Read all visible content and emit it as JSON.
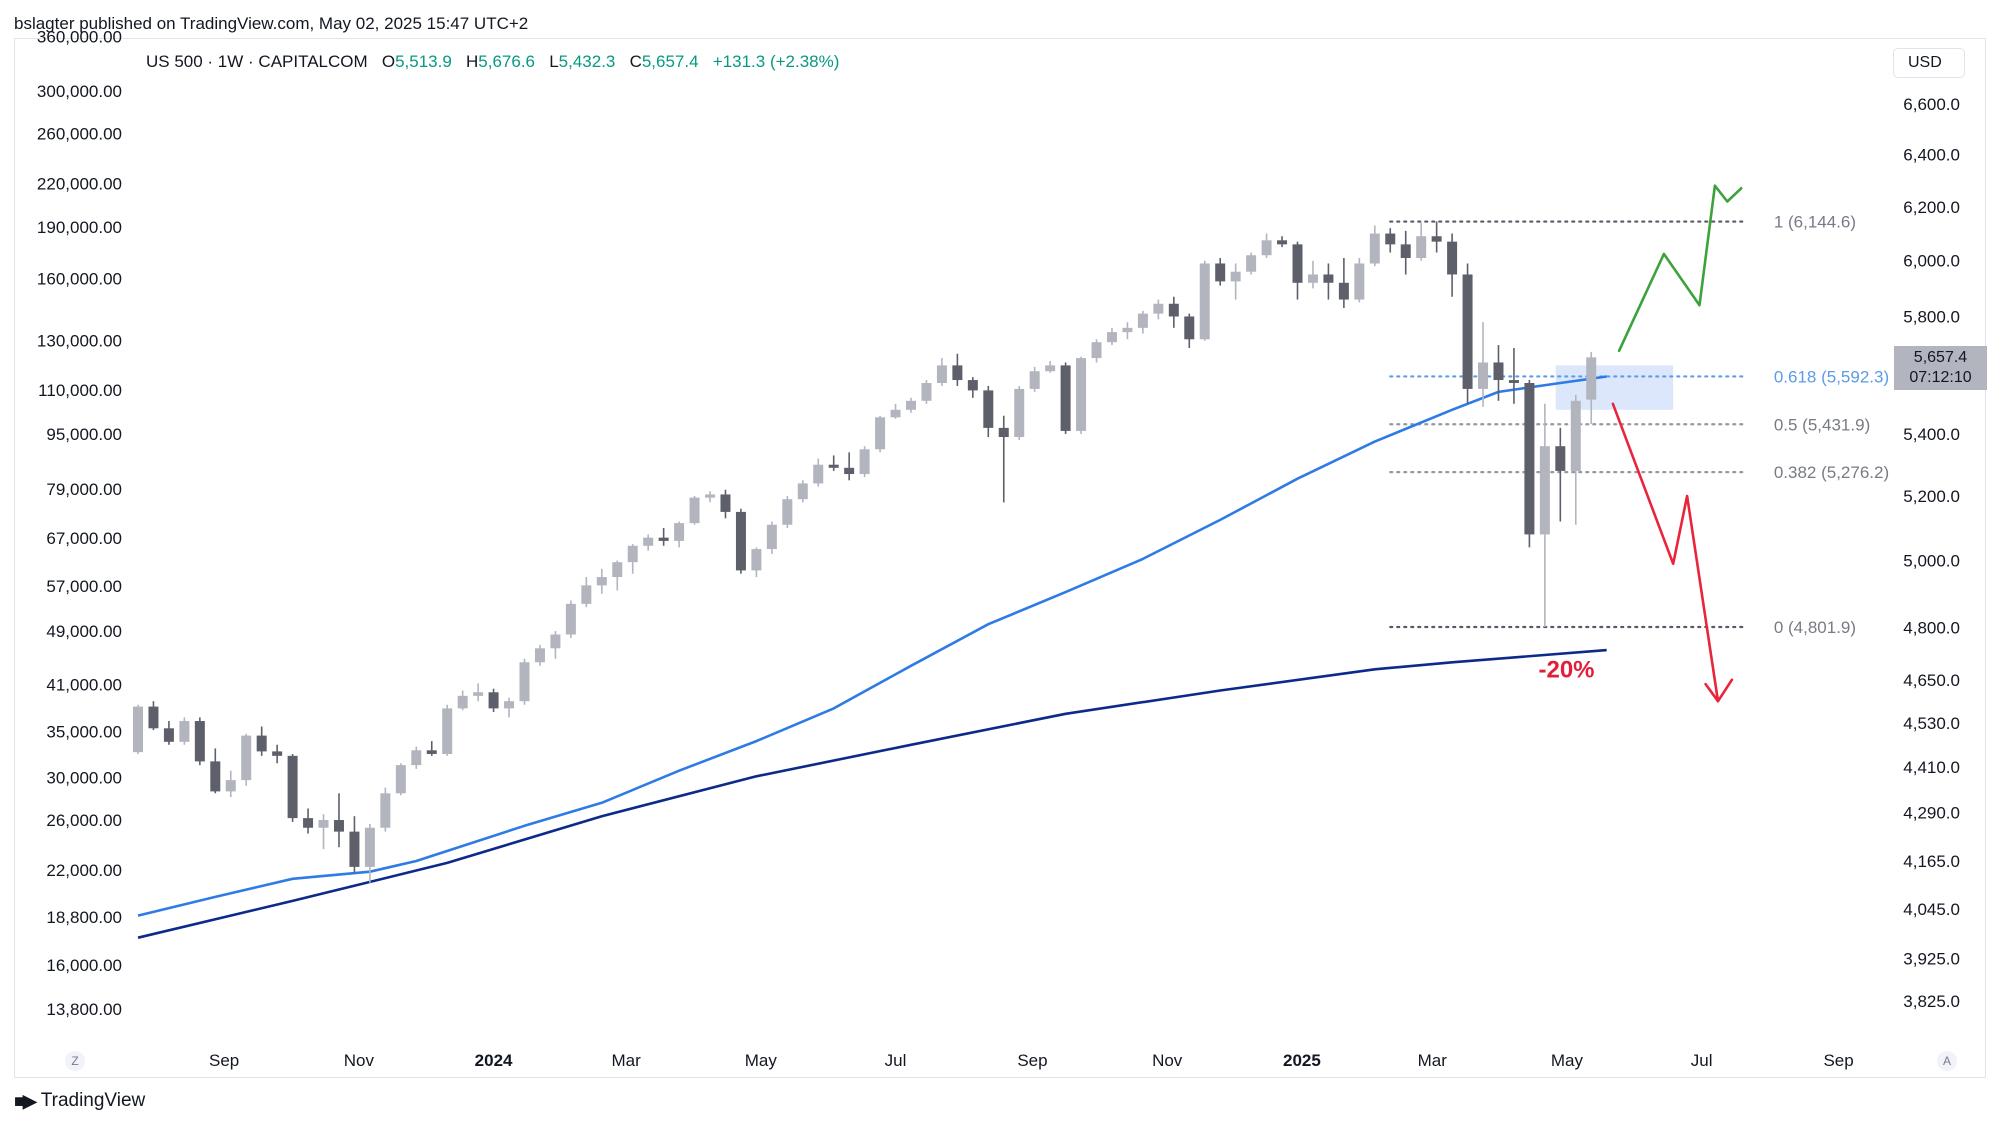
{
  "header": {
    "publisher_text": "bslagter published on TradingView.com, May 02, 2025 15:47 UTC+2"
  },
  "legend": {
    "symbol": "US 500 · 1W · CAPITALCOM",
    "open_label": "O",
    "open": "5,513.9",
    "high_label": "H",
    "high": "5,676.6",
    "low_label": "L",
    "low": "5,432.3",
    "close_label": "C",
    "close": "5,657.4",
    "change": "+131.3 (+2.38%)"
  },
  "currency_button": "USD",
  "price_badge": {
    "price": "5,657.4",
    "countdown": "07:12:10"
  },
  "footer": {
    "brand": "TradingView",
    "logo_icon": "tradingview-logo-icon"
  },
  "axis_buttons": {
    "left": "Z",
    "right": "A"
  },
  "colors": {
    "up_candle": "#b2b5be",
    "down_candle": "#5d606b",
    "ma_short": "#2f7be5",
    "ma_long": "#0c2a8a",
    "bull_arrow": "#3ea23c",
    "bear_arrow": "#e8253b",
    "fib_618": "#5b9be8",
    "fib_other": "#9598a1",
    "fib_extreme": "#555a66",
    "zone_fill": "#dbe6fb",
    "drop_label": "#e0203a"
  },
  "chart_data": {
    "type": "candlestick",
    "interval": "1W",
    "y_scale": "log",
    "right_axis": {
      "label": "USD",
      "range": [
        3780,
        6800
      ],
      "ticks": [
        {
          "value": 6600,
          "label": "6,600.0"
        },
        {
          "value": 6400,
          "label": "6,400.0"
        },
        {
          "value": 6200,
          "label": "6,200.0"
        },
        {
          "value": 6000,
          "label": "6,000.0"
        },
        {
          "value": 5800,
          "label": "5,800.0"
        },
        {
          "value": 5400,
          "label": "5,400.0"
        },
        {
          "value": 5200,
          "label": "5,200.0"
        },
        {
          "value": 5000,
          "label": "5,000.0"
        },
        {
          "value": 4800,
          "label": "4,800.0"
        },
        {
          "value": 4650,
          "label": "4,650.0"
        },
        {
          "value": 4530,
          "label": "4,530.0"
        },
        {
          "value": 4410,
          "label": "4,410.0"
        },
        {
          "value": 4290,
          "label": "4,290.0"
        },
        {
          "value": 4165,
          "label": "4,165.0"
        },
        {
          "value": 4045,
          "label": "4,045.0"
        },
        {
          "value": 3925,
          "label": "3,925.0"
        },
        {
          "value": 3825,
          "label": "3,825.0"
        }
      ]
    },
    "left_axis": {
      "ticks": [
        {
          "value": 360000,
          "label": "360,000.00"
        },
        {
          "value": 300000,
          "label": "300,000.00"
        },
        {
          "value": 260000,
          "label": "260,000.00"
        },
        {
          "value": 220000,
          "label": "220,000.00"
        },
        {
          "value": 190000,
          "label": "190,000.00"
        },
        {
          "value": 160000,
          "label": "160,000.00"
        },
        {
          "value": 130000,
          "label": "130,000.00"
        },
        {
          "value": 110000,
          "label": "110,000.00"
        },
        {
          "value": 95000,
          "label": "95,000.00"
        },
        {
          "value": 79000,
          "label": "79,000.00"
        },
        {
          "value": 67000,
          "label": "67,000.00"
        },
        {
          "value": 57000,
          "label": "57,000.00"
        },
        {
          "value": 49000,
          "label": "49,000.00"
        },
        {
          "value": 41000,
          "label": "41,000.00"
        },
        {
          "value": 35000,
          "label": "35,000.00"
        },
        {
          "value": 30000,
          "label": "30,000.00"
        },
        {
          "value": 26000,
          "label": "26,000.00"
        },
        {
          "value": 22000,
          "label": "22,000.00"
        },
        {
          "value": 18800,
          "label": "18,800.00"
        },
        {
          "value": 16000,
          "label": "16,000.00"
        },
        {
          "value": 13800,
          "label": "13,800.00"
        }
      ]
    },
    "x_axis": {
      "labels": [
        {
          "date": "2023-09-01",
          "label": "Sep",
          "bold": false
        },
        {
          "date": "2023-11-01",
          "label": "Nov",
          "bold": false
        },
        {
          "date": "2024-01-01",
          "label": "2024",
          "bold": true
        },
        {
          "date": "2024-03-01",
          "label": "Mar",
          "bold": false
        },
        {
          "date": "2024-05-01",
          "label": "May",
          "bold": false
        },
        {
          "date": "2024-07-01",
          "label": "Jul",
          "bold": false
        },
        {
          "date": "2024-09-01",
          "label": "Sep",
          "bold": false
        },
        {
          "date": "2024-11-01",
          "label": "Nov",
          "bold": false
        },
        {
          "date": "2025-01-01",
          "label": "2025",
          "bold": true
        },
        {
          "date": "2025-03-01",
          "label": "Mar",
          "bold": false
        },
        {
          "date": "2025-05-01",
          "label": "May",
          "bold": false
        },
        {
          "date": "2025-07-01",
          "label": "Jul",
          "bold": false
        },
        {
          "date": "2025-09-01",
          "label": "Sep",
          "bold": false
        }
      ]
    },
    "start_date": "2023-07-24",
    "candles": [
      [
        4450,
        4580,
        4445,
        4575
      ],
      [
        4575,
        4590,
        4510,
        4515
      ],
      [
        4515,
        4535,
        4470,
        4478
      ],
      [
        4478,
        4545,
        4470,
        4535
      ],
      [
        4535,
        4545,
        4415,
        4425
      ],
      [
        4425,
        4460,
        4340,
        4345
      ],
      [
        4345,
        4400,
        4330,
        4375
      ],
      [
        4375,
        4500,
        4360,
        4495
      ],
      [
        4495,
        4520,
        4440,
        4452
      ],
      [
        4452,
        4470,
        4420,
        4440
      ],
      [
        4440,
        4445,
        4265,
        4275
      ],
      [
        4275,
        4300,
        4235,
        4250
      ],
      [
        4250,
        4285,
        4195,
        4270
      ],
      [
        4270,
        4340,
        4200,
        4240
      ],
      [
        4240,
        4280,
        4135,
        4150
      ],
      [
        4150,
        4260,
        4110,
        4250
      ],
      [
        4250,
        4355,
        4240,
        4340
      ],
      [
        4340,
        4420,
        4335,
        4415
      ],
      [
        4415,
        4465,
        4405,
        4455
      ],
      [
        4455,
        4480,
        4440,
        4445
      ],
      [
        4445,
        4580,
        4440,
        4570
      ],
      [
        4570,
        4620,
        4565,
        4605
      ],
      [
        4605,
        4640,
        4590,
        4615
      ],
      [
        4615,
        4625,
        4560,
        4570
      ],
      [
        4570,
        4600,
        4545,
        4590
      ],
      [
        4590,
        4710,
        4580,
        4700
      ],
      [
        4700,
        4750,
        4690,
        4740
      ],
      [
        4740,
        4790,
        4710,
        4780
      ],
      [
        4780,
        4880,
        4770,
        4870
      ],
      [
        4870,
        4950,
        4860,
        4925
      ],
      [
        4925,
        4975,
        4900,
        4950
      ],
      [
        4950,
        5000,
        4910,
        4995
      ],
      [
        4995,
        5050,
        4960,
        5045
      ],
      [
        5045,
        5080,
        5030,
        5070
      ],
      [
        5070,
        5100,
        5045,
        5060
      ],
      [
        5060,
        5120,
        5040,
        5115
      ],
      [
        5115,
        5200,
        5110,
        5195
      ],
      [
        5195,
        5215,
        5180,
        5205
      ],
      [
        5205,
        5220,
        5130,
        5150
      ],
      [
        5150,
        5160,
        4960,
        4970
      ],
      [
        4970,
        5040,
        4950,
        5035
      ],
      [
        5035,
        5120,
        5020,
        5110
      ],
      [
        5110,
        5200,
        5100,
        5190
      ],
      [
        5190,
        5250,
        5180,
        5240
      ],
      [
        5240,
        5320,
        5230,
        5300
      ],
      [
        5300,
        5330,
        5280,
        5290
      ],
      [
        5290,
        5340,
        5250,
        5270
      ],
      [
        5270,
        5360,
        5260,
        5350
      ],
      [
        5350,
        5460,
        5340,
        5455
      ],
      [
        5455,
        5500,
        5450,
        5480
      ],
      [
        5480,
        5520,
        5470,
        5510
      ],
      [
        5510,
        5580,
        5500,
        5570
      ],
      [
        5570,
        5655,
        5560,
        5630
      ],
      [
        5630,
        5670,
        5560,
        5580
      ],
      [
        5580,
        5590,
        5520,
        5545
      ],
      [
        5545,
        5560,
        5390,
        5420
      ],
      [
        5420,
        5460,
        5180,
        5390
      ],
      [
        5390,
        5560,
        5380,
        5550
      ],
      [
        5550,
        5625,
        5540,
        5610
      ],
      [
        5610,
        5645,
        5605,
        5630
      ],
      [
        5630,
        5640,
        5400,
        5410
      ],
      [
        5410,
        5660,
        5400,
        5655
      ],
      [
        5655,
        5720,
        5640,
        5710
      ],
      [
        5710,
        5760,
        5700,
        5745
      ],
      [
        5745,
        5780,
        5720,
        5760
      ],
      [
        5760,
        5820,
        5740,
        5810
      ],
      [
        5810,
        5860,
        5790,
        5845
      ],
      [
        5845,
        5870,
        5760,
        5800
      ],
      [
        5800,
        5810,
        5690,
        5720
      ],
      [
        5720,
        6000,
        5715,
        5990
      ],
      [
        5990,
        6010,
        5910,
        5925
      ],
      [
        5925,
        5990,
        5860,
        5960
      ],
      [
        5960,
        6030,
        5950,
        6020
      ],
      [
        6020,
        6100,
        6010,
        6075
      ],
      [
        6075,
        6090,
        6050,
        6060
      ],
      [
        6060,
        6070,
        5860,
        5920
      ],
      [
        5920,
        6000,
        5900,
        5950
      ],
      [
        5950,
        5990,
        5860,
        5920
      ],
      [
        5920,
        6010,
        5830,
        5860
      ],
      [
        5860,
        6010,
        5850,
        5990
      ],
      [
        5990,
        6130,
        5980,
        6100
      ],
      [
        6100,
        6120,
        6030,
        6060
      ],
      [
        6060,
        6110,
        5950,
        6010
      ],
      [
        6010,
        6140,
        6000,
        6090
      ],
      [
        6090,
        6145,
        6030,
        6070
      ],
      [
        6070,
        6100,
        5870,
        5950
      ],
      [
        5950,
        5990,
        5500,
        5550
      ],
      [
        5550,
        5780,
        5490,
        5640
      ],
      [
        5640,
        5700,
        5510,
        5580
      ],
      [
        5580,
        5690,
        5500,
        5570
      ],
      [
        5570,
        5580,
        5040,
        5080
      ],
      [
        5080,
        5500,
        4801.9,
        5360
      ],
      [
        5360,
        5420,
        5120,
        5280
      ],
      [
        5280,
        5530,
        5110,
        5510
      ],
      [
        5513.9,
        5676.6,
        5432.3,
        5657.4
      ]
    ],
    "moving_averages": [
      {
        "anchors": [
          [
            0,
            4029
          ],
          [
            5,
            4075
          ],
          [
            10,
            4120
          ],
          [
            15,
            4138
          ],
          [
            18,
            4165
          ],
          [
            25,
            4255
          ],
          [
            30,
            4315
          ],
          [
            35,
            4400
          ],
          [
            40,
            4480
          ],
          [
            45,
            4570
          ],
          [
            50,
            4690
          ],
          [
            55,
            4810
          ],
          [
            60,
            4905
          ],
          [
            65,
            5005
          ],
          [
            70,
            5125
          ],
          [
            75,
            5255
          ],
          [
            80,
            5375
          ],
          [
            85,
            5480
          ],
          [
            88,
            5540
          ],
          [
            92,
            5570
          ],
          [
            95,
            5592
          ]
        ]
      },
      {
        "anchors": [
          [
            0,
            3975
          ],
          [
            10,
            4065
          ],
          [
            20,
            4160
          ],
          [
            30,
            4280
          ],
          [
            40,
            4385
          ],
          [
            50,
            4470
          ],
          [
            60,
            4555
          ],
          [
            70,
            4620
          ],
          [
            80,
            4680
          ],
          [
            85,
            4700
          ],
          [
            95,
            4735
          ]
        ]
      }
    ],
    "fibonacci": [
      {
        "ratio": "1",
        "price": 6144.6,
        "label": "1 (6,144.6)"
      },
      {
        "ratio": "0.618",
        "price": 5592.3,
        "label": "0.618 (5,592.3)"
      },
      {
        "ratio": "0.5",
        "price": 5431.9,
        "label": "0.5 (5,431.9)"
      },
      {
        "ratio": "0.382",
        "price": 5276.2,
        "label": "0.382 (5,276.2)"
      },
      {
        "ratio": "0",
        "price": 4801.9,
        "label": "0 (4,801.9)"
      }
    ],
    "fib_start_index": 81,
    "fib_end_index": 104,
    "resistance_zone": {
      "from_index": 91.7,
      "to_index": 99.3,
      "price_low": 5480,
      "price_high": 5630
    },
    "bull_path": [
      [
        95.8,
        5680
      ],
      [
        98.7,
        6025
      ],
      [
        101,
        5840
      ],
      [
        102,
        6280
      ],
      [
        102.8,
        6220
      ],
      [
        103.7,
        6270
      ]
    ],
    "bear_path": [
      [
        95.4,
        5500
      ],
      [
        99.3,
        4990
      ],
      [
        100.2,
        5200
      ],
      [
        102.2,
        4590
      ],
      [
        101.4,
        4638
      ],
      [
        102.2,
        4590
      ],
      [
        103.1,
        4650
      ]
    ],
    "drop_label": {
      "text": "-20%",
      "index": 92.4,
      "price": 4680
    }
  }
}
